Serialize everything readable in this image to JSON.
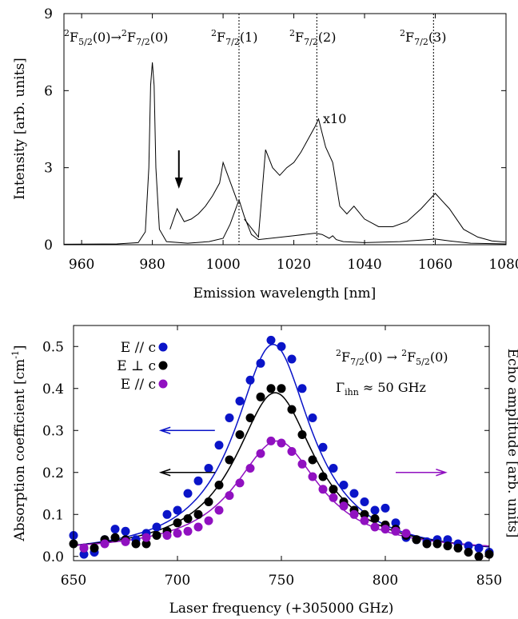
{
  "chart_data": [
    {
      "type": "line",
      "xlabel": "Emission wavelength [nm]",
      "ylabel": "Intensity [arb. units]",
      "xlim": [
        955,
        1080
      ],
      "ylim": [
        0,
        9
      ],
      "xticks": [
        "960",
        "980",
        "1000",
        "1020",
        "1040",
        "1060",
        "1080"
      ],
      "yticks": [
        "0",
        "3",
        "6",
        "9"
      ],
      "grid": false,
      "annotations": {
        "peak0": "2F5/2(0)→2F7/2(0)",
        "peak1": "2F7/2(1)",
        "peak2": "2F7/2(2)",
        "peak3": "2F7/2(3)",
        "scale": "x10"
      },
      "marker_lines_x": [
        1004.5,
        1026.5,
        1059.5
      ],
      "arrow_x": 987.5,
      "series": [
        {
          "x": [
            985,
            987,
            989,
            991,
            993,
            995,
            997,
            999,
            1000,
            1004,
            1006,
            1010,
            1012,
            1014,
            1016,
            1018,
            1020,
            1022,
            1024,
            1026,
            1027,
            1029,
            1031,
            1033,
            1035,
            1037,
            1040,
            1044,
            1048,
            1052,
            1056,
            1060,
            1064,
            1068,
            1072,
            1076,
            1080
          ],
          "y": [
            0.6,
            1.4,
            0.9,
            1.0,
            1.2,
            1.5,
            1.9,
            2.4,
            3.2,
            1.7,
            1.0,
            0.3,
            3.7,
            3.0,
            2.7,
            3.0,
            3.2,
            3.6,
            4.1,
            4.6,
            4.9,
            3.8,
            3.2,
            1.5,
            1.2,
            1.5,
            1.0,
            0.7,
            0.7,
            0.9,
            1.4,
            2.0,
            1.4,
            0.6,
            0.3,
            0.15,
            0.1
          ]
        },
        {
          "x": [
            955,
            970,
            976,
            978,
            979,
            979.5,
            980,
            980.5,
            981,
            982,
            984,
            990,
            996,
            1000,
            1002,
            1004.5,
            1006,
            1008,
            1010,
            1020,
            1026,
            1028,
            1030,
            1031,
            1032,
            1034,
            1040,
            1050,
            1056,
            1060,
            1064,
            1070,
            1080
          ],
          "y": [
            0.02,
            0.03,
            0.08,
            0.5,
            3.0,
            6.2,
            7.1,
            6.2,
            3.0,
            0.6,
            0.12,
            0.06,
            0.12,
            0.25,
            0.8,
            1.75,
            1.1,
            0.4,
            0.2,
            0.35,
            0.45,
            0.4,
            0.25,
            0.35,
            0.2,
            0.12,
            0.08,
            0.12,
            0.18,
            0.22,
            0.15,
            0.06,
            0.03
          ]
        }
      ]
    },
    {
      "type": "scatter",
      "xlabel": "Laser frequency (+305000 GHz)",
      "ylabel": "Absorption coefficient [cm⁻¹]",
      "y2label": "Echo amplitude [arb. units]",
      "xlim": [
        650,
        850
      ],
      "ylim": [
        -0.01,
        0.55
      ],
      "xticks": [
        "650",
        "700",
        "750",
        "800",
        "850"
      ],
      "yticks": [
        "0.0",
        "0.1",
        "0.2",
        "0.3",
        "0.4",
        "0.5"
      ],
      "grid": false,
      "legend_position": "top-left",
      "annotations": {
        "transition": "2F7/2(0) → 2F5/2(0)",
        "gamma": "Γihn ≈ 50 GHz"
      },
      "series": [
        {
          "name": "E // c",
          "color": "#0a14c8",
          "x": [
            650,
            655,
            660,
            665,
            670,
            675,
            680,
            685,
            690,
            695,
            700,
            705,
            710,
            715,
            720,
            725,
            730,
            735,
            740,
            745,
            750,
            755,
            760,
            765,
            770,
            775,
            780,
            785,
            790,
            795,
            800,
            805,
            810,
            815,
            820,
            825,
            830,
            835,
            840,
            845,
            850
          ],
          "y": [
            0.05,
            0.005,
            0.01,
            0.04,
            0.065,
            0.06,
            0.04,
            0.055,
            0.07,
            0.1,
            0.11,
            0.15,
            0.18,
            0.21,
            0.265,
            0.33,
            0.37,
            0.42,
            0.46,
            0.515,
            0.5,
            0.47,
            0.4,
            0.33,
            0.26,
            0.21,
            0.17,
            0.15,
            0.13,
            0.11,
            0.115,
            0.08,
            0.045,
            0.04,
            0.035,
            0.04,
            0.04,
            0.03,
            0.025,
            0.02,
            0.01
          ]
        },
        {
          "name": "E ⊥ c",
          "color": "#000000",
          "x": [
            650,
            655,
            660,
            665,
            670,
            675,
            680,
            685,
            690,
            695,
            700,
            705,
            710,
            715,
            720,
            725,
            730,
            735,
            740,
            745,
            750,
            755,
            760,
            765,
            770,
            775,
            780,
            785,
            790,
            795,
            800,
            805,
            810,
            815,
            820,
            825,
            830,
            835,
            840,
            845,
            850
          ],
          "y": [
            0.03,
            0.02,
            0.02,
            0.04,
            0.045,
            0.04,
            0.03,
            0.03,
            0.05,
            0.06,
            0.08,
            0.09,
            0.1,
            0.13,
            0.17,
            0.23,
            0.29,
            0.33,
            0.38,
            0.4,
            0.4,
            0.35,
            0.29,
            0.23,
            0.19,
            0.16,
            0.13,
            0.11,
            0.1,
            0.09,
            0.075,
            0.065,
            0.05,
            0.04,
            0.03,
            0.03,
            0.025,
            0.02,
            0.01,
            0.0,
            0.005
          ]
        },
        {
          "name": "E // c",
          "color": "#9010c0",
          "x": [
            655,
            665,
            675,
            685,
            695,
            700,
            705,
            710,
            715,
            720,
            725,
            730,
            735,
            740,
            745,
            750,
            755,
            760,
            765,
            770,
            775,
            780,
            785,
            790,
            795,
            800,
            805,
            810
          ],
          "y": [
            0.02,
            0.03,
            0.035,
            0.045,
            0.05,
            0.055,
            0.06,
            0.07,
            0.085,
            0.11,
            0.145,
            0.175,
            0.21,
            0.245,
            0.275,
            0.27,
            0.25,
            0.22,
            0.19,
            0.16,
            0.14,
            0.12,
            0.1,
            0.085,
            0.07,
            0.065,
            0.06,
            0.055
          ]
        }
      ],
      "fits": [
        {
          "color": "#0a14c8",
          "center": 746,
          "fwhm": 45,
          "amp": 0.505,
          "base": 0.0
        },
        {
          "color": "#000000",
          "center": 747,
          "fwhm": 47,
          "amp": 0.385,
          "base": 0.005
        },
        {
          "color": "#9010c0",
          "center": 748,
          "fwhm": 50,
          "amp": 0.265,
          "base": 0.01
        }
      ],
      "arrows": [
        {
          "color": "#0a14c8",
          "direction": "left",
          "y": 0.3,
          "x_from": 718,
          "x_to": 692
        },
        {
          "color": "#000000",
          "direction": "left",
          "y": 0.2,
          "x_from": 718,
          "x_to": 692
        },
        {
          "color": "#9010c0",
          "direction": "right",
          "y": 0.2,
          "x_from": 805,
          "x_to": 829
        }
      ]
    }
  ]
}
